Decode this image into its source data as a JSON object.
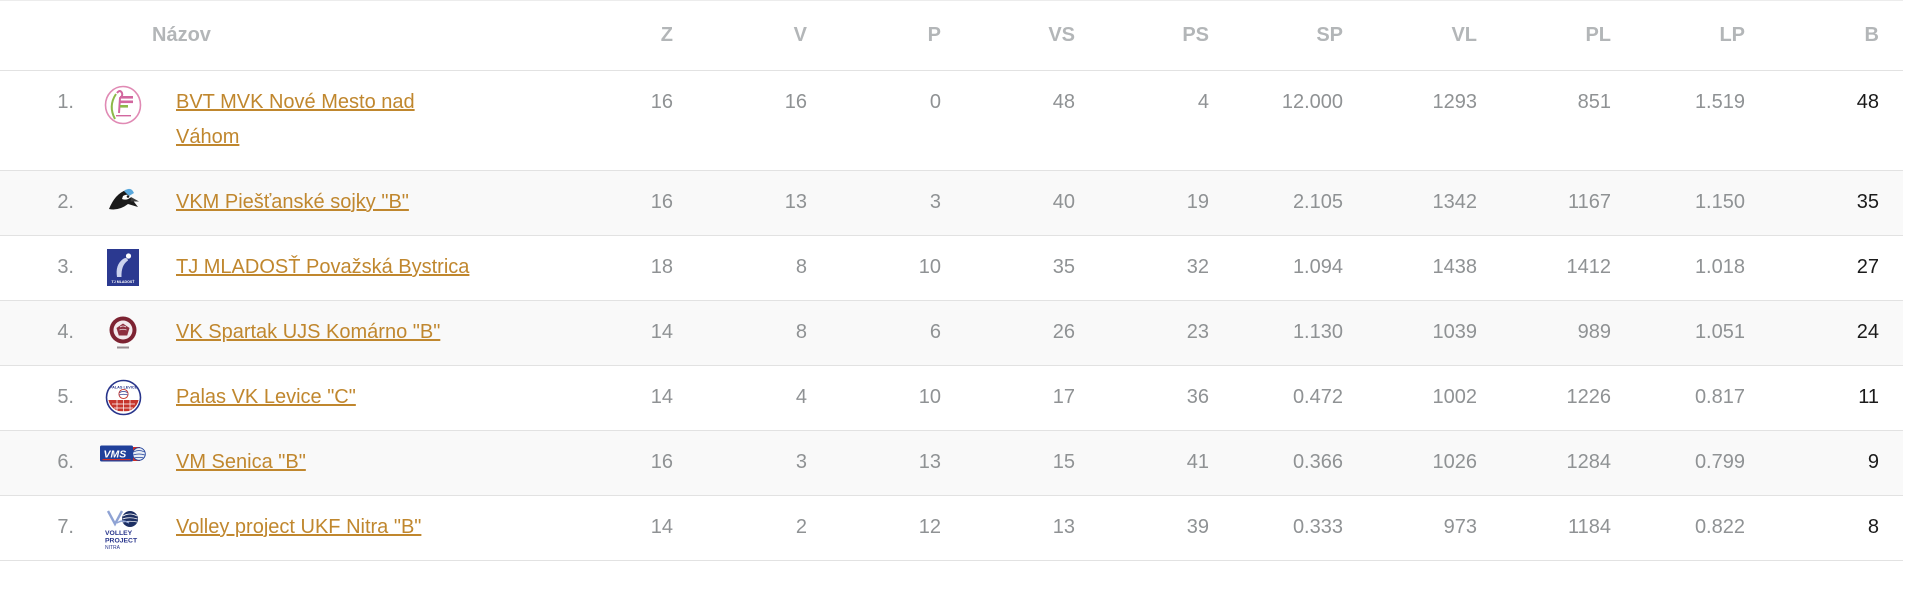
{
  "colors": {
    "link": "#c0872e",
    "header_text": "#b3b6b8",
    "cell_text": "#8f9294",
    "points_text": "#1b1b1b",
    "divider": "#e2e2e2"
  },
  "table": {
    "columns": [
      {
        "key": "nazov",
        "label": "Názov"
      },
      {
        "key": "z",
        "label": "Z"
      },
      {
        "key": "v",
        "label": "V"
      },
      {
        "key": "p",
        "label": "P"
      },
      {
        "key": "vs",
        "label": "VS"
      },
      {
        "key": "ps",
        "label": "PS"
      },
      {
        "key": "sp",
        "label": "SP"
      },
      {
        "key": "vl",
        "label": "VL"
      },
      {
        "key": "pl",
        "label": "PL"
      },
      {
        "key": "lp",
        "label": "LP"
      },
      {
        "key": "b",
        "label": "B"
      }
    ],
    "rows": [
      {
        "rank": "1.",
        "logo": "bvt-mvk",
        "name": "BVT MVK Nové Mesto nad\nVáhom",
        "z": "16",
        "v": "16",
        "p": "0",
        "vs": "48",
        "ps": "4",
        "sp": "12.000",
        "vl": "1293",
        "pl": "851",
        "lp": "1.519",
        "b": "48"
      },
      {
        "rank": "2.",
        "logo": "vkm-sojky",
        "name": "VKM Piešťanské sojky \"B\"",
        "z": "16",
        "v": "13",
        "p": "3",
        "vs": "40",
        "ps": "19",
        "sp": "2.105",
        "vl": "1342",
        "pl": "1167",
        "lp": "1.150",
        "b": "35"
      },
      {
        "rank": "3.",
        "logo": "tj-mladost",
        "name": "TJ MLADOSŤ Považská Bystrica",
        "z": "18",
        "v": "8",
        "p": "10",
        "vs": "35",
        "ps": "32",
        "sp": "1.094",
        "vl": "1438",
        "pl": "1412",
        "lp": "1.018",
        "b": "27"
      },
      {
        "rank": "4.",
        "logo": "vk-spartak",
        "name": "VK Spartak UJS Komárno \"B\"",
        "z": "14",
        "v": "8",
        "p": "6",
        "vs": "26",
        "ps": "23",
        "sp": "1.130",
        "vl": "1039",
        "pl": "989",
        "lp": "1.051",
        "b": "24"
      },
      {
        "rank": "5.",
        "logo": "palas-levice",
        "name": "Palas VK Levice \"C\"",
        "z": "14",
        "v": "4",
        "p": "10",
        "vs": "17",
        "ps": "36",
        "sp": "0.472",
        "vl": "1002",
        "pl": "1226",
        "lp": "0.817",
        "b": "11"
      },
      {
        "rank": "6.",
        "logo": "vm-senica",
        "name": "VM Senica \"B\"",
        "z": "16",
        "v": "3",
        "p": "13",
        "vs": "15",
        "ps": "41",
        "sp": "0.366",
        "vl": "1026",
        "pl": "1284",
        "lp": "0.799",
        "b": "9"
      },
      {
        "rank": "7.",
        "logo": "ukf-nitra",
        "name": "Volley project UKF Nitra \"B\"",
        "z": "14",
        "v": "2",
        "p": "12",
        "vs": "13",
        "ps": "39",
        "sp": "0.333",
        "vl": "973",
        "pl": "1184",
        "lp": "0.822",
        "b": "8"
      }
    ]
  }
}
